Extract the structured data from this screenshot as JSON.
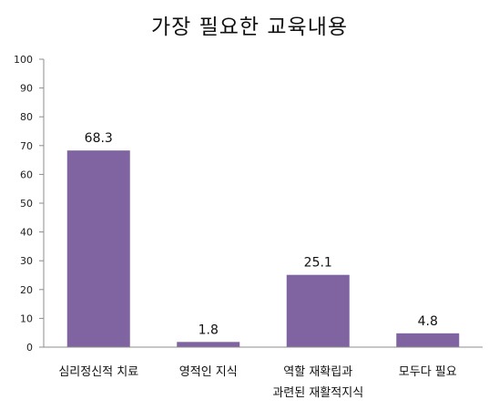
{
  "chart_data": {
    "type": "bar",
    "title": "가장 필요한 교육내용",
    "categories": [
      [
        "심리정신적 치료"
      ],
      [
        "영적인 지식"
      ],
      [
        "역할 재확립과",
        "과련된 재활적지식"
      ],
      [
        "모두다 필요"
      ]
    ],
    "values": [
      68.3,
      1.8,
      25.1,
      4.8
    ],
    "value_labels": [
      "68.3",
      "1.8",
      "25.1",
      "4.8"
    ],
    "ylim": [
      0,
      100
    ],
    "yticks": [
      0,
      10,
      20,
      30,
      40,
      50,
      60,
      70,
      80,
      90,
      100
    ],
    "grid": false,
    "legend": "none",
    "bar_color": "#8064A2",
    "axis_color": "#8C8C8C"
  }
}
